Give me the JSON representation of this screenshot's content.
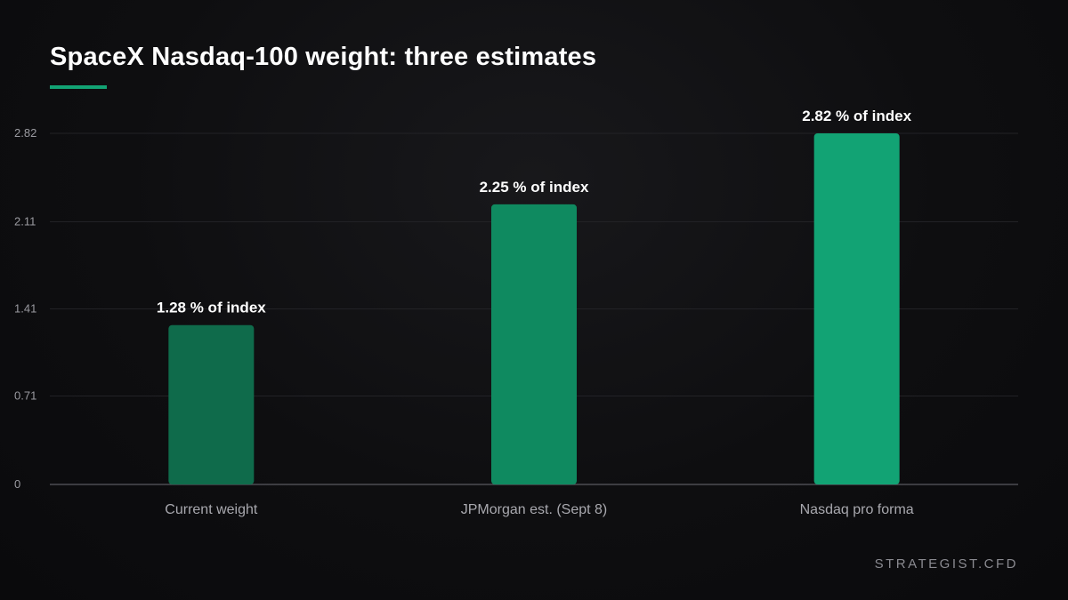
{
  "chart_data": {
    "type": "bar",
    "title": "SpaceX Nasdaq-100 weight: three estimates",
    "xlabel": "",
    "ylabel": "",
    "categories": [
      "Current weight",
      "JPMorgan est. (Sept 8)",
      "Nasdaq pro forma"
    ],
    "values": [
      1.28,
      2.25,
      2.82
    ],
    "data_labels": [
      "1.28 % of index",
      "2.25 % of index",
      "2.82 % of index"
    ],
    "bar_colors": [
      "#0f6b4b",
      "#0f8a60",
      "#12a374"
    ],
    "y_ticks": [
      0,
      0.71,
      1.41,
      2.11,
      2.82
    ],
    "y_tick_labels": [
      "0",
      "0.71",
      "1.41",
      "2.11",
      "2.82"
    ],
    "ylim": [
      0,
      2.82
    ],
    "grid": true,
    "legend": "none"
  },
  "colors": {
    "accent": "#12a374",
    "background": "#0e0e10"
  },
  "footer": {
    "brand": "STRATEGIST.CFD"
  }
}
